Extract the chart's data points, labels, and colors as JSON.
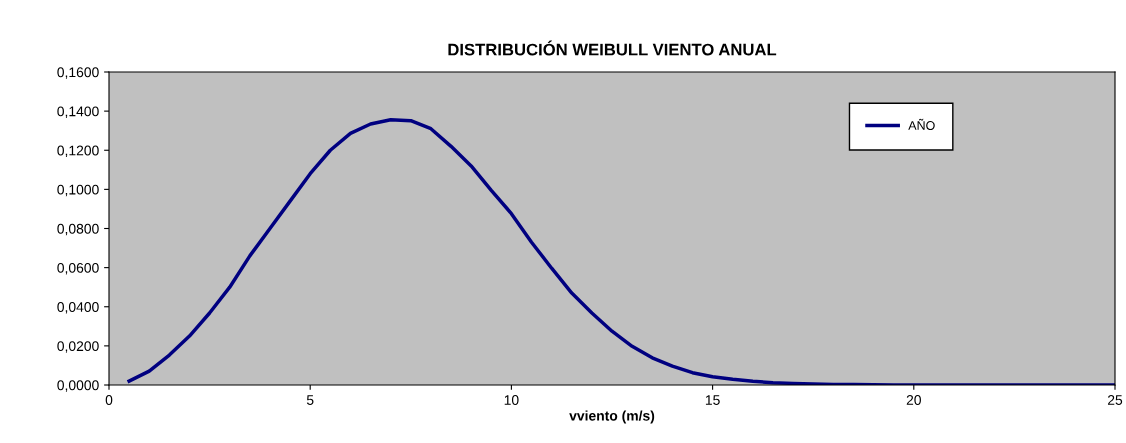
{
  "chart_data": {
    "type": "line",
    "title": "DISTRIBUCIÓN WEIBULL VIENTO ANUAL",
    "xlabel": "vviento (m/s)",
    "x": [
      0.5,
      1,
      1.5,
      2,
      2.5,
      3,
      3.5,
      4,
      4.5,
      5,
      5.5,
      6,
      6.5,
      7,
      7.5,
      8,
      8.5,
      9,
      9.5,
      10,
      10.5,
      11,
      11.5,
      12,
      12.5,
      13,
      13.5,
      14,
      14.5,
      15,
      15.5,
      16,
      16.5,
      17,
      17.5,
      18,
      18.5,
      19,
      19.5,
      20,
      21,
      22,
      23,
      24,
      25
    ],
    "series": [
      {
        "name": "AÑO",
        "color": "#000080",
        "values": [
          0.002,
          0.0071,
          0.0153,
          0.025,
          0.0368,
          0.05,
          0.066,
          0.08,
          0.094,
          0.108,
          0.12,
          0.1286,
          0.1334,
          0.1356,
          0.1351,
          0.131,
          0.122,
          0.112,
          0.0995,
          0.0876,
          0.073,
          0.0597,
          0.047,
          0.0368,
          0.0275,
          0.0198,
          0.0139,
          0.0097,
          0.0063,
          0.0042,
          0.0029,
          0.0019,
          0.0012,
          0.0008,
          0.0005,
          0.0003,
          0.0002,
          0.0001,
          0,
          0,
          0,
          0,
          0,
          0,
          0
        ]
      }
    ],
    "xlim": [
      0,
      25
    ],
    "xticks": [
      0,
      5,
      10,
      15,
      20,
      25
    ],
    "ylim": [
      0,
      0.16
    ],
    "yticks": [
      {
        "value": 0,
        "label": "0,0000"
      },
      {
        "value": 0.02,
        "label": "0,0200"
      },
      {
        "value": 0.04,
        "label": "0,0400"
      },
      {
        "value": 0.06,
        "label": "0,0600"
      },
      {
        "value": 0.08,
        "label": "0,0800"
      },
      {
        "value": 0.1,
        "label": "0,1000"
      },
      {
        "value": 0.12,
        "label": "0,1200"
      },
      {
        "value": 0.14,
        "label": "0,1400"
      },
      {
        "value": 0.16,
        "label": "0,1600"
      }
    ],
    "legend": "top right",
    "marker": "none",
    "line_style": "solid"
  }
}
